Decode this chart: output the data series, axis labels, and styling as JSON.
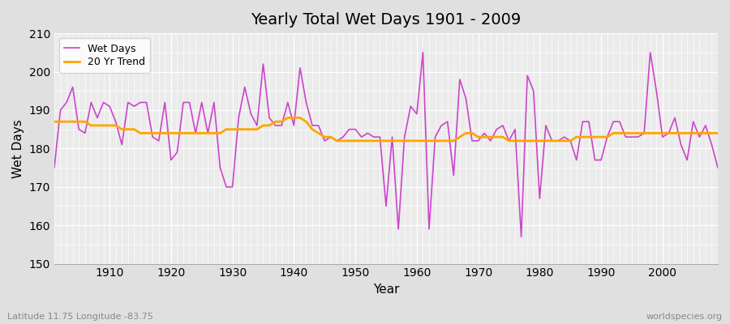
{
  "title": "Yearly Total Wet Days 1901 - 2009",
  "xlabel": "Year",
  "ylabel": "Wet Days",
  "subtitle_left": "Latitude 11.75 Longitude -83.75",
  "subtitle_right": "worldspecies.org",
  "ylim": [
    150,
    210
  ],
  "xlim": [
    1901,
    2009
  ],
  "yticks": [
    150,
    160,
    170,
    180,
    190,
    200,
    210
  ],
  "xticks": [
    1910,
    1920,
    1930,
    1940,
    1950,
    1960,
    1970,
    1980,
    1990,
    2000
  ],
  "wet_days_color": "#cc44cc",
  "trend_color": "#ffa500",
  "fig_bg_color": "#e0e0e0",
  "plot_bg_color": "#ebebeb",
  "wet_days": {
    "1901": 175,
    "1902": 190,
    "1903": 192,
    "1904": 196,
    "1905": 185,
    "1906": 184,
    "1907": 192,
    "1908": 188,
    "1909": 192,
    "1910": 191,
    "1911": 187,
    "1912": 181,
    "1913": 192,
    "1914": 191,
    "1915": 192,
    "1916": 192,
    "1917": 183,
    "1918": 182,
    "1919": 192,
    "1920": 177,
    "1921": 179,
    "1922": 192,
    "1923": 192,
    "1924": 184,
    "1925": 192,
    "1926": 184,
    "1927": 192,
    "1928": 175,
    "1929": 170,
    "1930": 170,
    "1931": 188,
    "1932": 196,
    "1933": 189,
    "1934": 186,
    "1935": 202,
    "1936": 188,
    "1937": 186,
    "1938": 186,
    "1939": 192,
    "1940": 186,
    "1941": 201,
    "1942": 192,
    "1943": 186,
    "1944": 186,
    "1945": 182,
    "1946": 183,
    "1947": 182,
    "1948": 183,
    "1949": 185,
    "1950": 185,
    "1951": 183,
    "1952": 184,
    "1953": 183,
    "1954": 183,
    "1955": 165,
    "1956": 183,
    "1957": 159,
    "1958": 183,
    "1959": 191,
    "1960": 189,
    "1961": 205,
    "1962": 159,
    "1963": 183,
    "1964": 186,
    "1965": 187,
    "1966": 173,
    "1967": 198,
    "1968": 193,
    "1969": 182,
    "1970": 182,
    "1971": 184,
    "1972": 182,
    "1973": 185,
    "1974": 186,
    "1975": 182,
    "1976": 185,
    "1977": 157,
    "1978": 199,
    "1979": 195,
    "1980": 167,
    "1981": 186,
    "1982": 182,
    "1983": 182,
    "1984": 183,
    "1985": 182,
    "1986": 177,
    "1987": 187,
    "1988": 187,
    "1989": 177,
    "1990": 177,
    "1991": 183,
    "1992": 187,
    "1993": 187,
    "1994": 183,
    "1995": 183,
    "1996": 183,
    "1997": 184,
    "1998": 205,
    "1999": 195,
    "2000": 183,
    "2001": 184,
    "2002": 188,
    "2003": 181,
    "2004": 177,
    "2005": 187,
    "2006": 183,
    "2007": 186,
    "2008": 181,
    "2009": 175
  },
  "trend": {
    "1901": 187,
    "1902": 187,
    "1903": 187,
    "1904": 187,
    "1905": 187,
    "1906": 187,
    "1907": 186,
    "1908": 186,
    "1909": 186,
    "1910": 186,
    "1911": 186,
    "1912": 185,
    "1913": 185,
    "1914": 185,
    "1915": 184,
    "1916": 184,
    "1917": 184,
    "1918": 184,
    "1919": 184,
    "1920": 184,
    "1921": 184,
    "1922": 184,
    "1923": 184,
    "1924": 184,
    "1925": 184,
    "1926": 184,
    "1927": 184,
    "1928": 184,
    "1929": 185,
    "1930": 185,
    "1931": 185,
    "1932": 185,
    "1933": 185,
    "1934": 185,
    "1935": 186,
    "1936": 186,
    "1937": 187,
    "1938": 187,
    "1939": 188,
    "1940": 188,
    "1941": 188,
    "1942": 187,
    "1943": 185,
    "1944": 184,
    "1945": 183,
    "1946": 183,
    "1947": 182,
    "1948": 182,
    "1949": 182,
    "1950": 182,
    "1951": 182,
    "1952": 182,
    "1953": 182,
    "1954": 182,
    "1955": 182,
    "1956": 182,
    "1957": 182,
    "1958": 182,
    "1959": 182,
    "1960": 182,
    "1961": 182,
    "1962": 182,
    "1963": 182,
    "1964": 182,
    "1965": 182,
    "1966": 182,
    "1967": 183,
    "1968": 184,
    "1969": 184,
    "1970": 183,
    "1971": 183,
    "1972": 183,
    "1973": 183,
    "1974": 183,
    "1975": 182,
    "1976": 182,
    "1977": 182,
    "1978": 182,
    "1979": 182,
    "1980": 182,
    "1981": 182,
    "1982": 182,
    "1983": 182,
    "1984": 182,
    "1985": 182,
    "1986": 183,
    "1987": 183,
    "1988": 183,
    "1989": 183,
    "1990": 183,
    "1991": 183,
    "1992": 184,
    "1993": 184,
    "1994": 184,
    "1995": 184,
    "1996": 184,
    "1997": 184,
    "1998": 184,
    "1999": 184,
    "2000": 184,
    "2001": 184,
    "2002": 184,
    "2003": 184,
    "2004": 184,
    "2005": 184,
    "2006": 184,
    "2007": 184,
    "2008": 184,
    "2009": 184
  }
}
